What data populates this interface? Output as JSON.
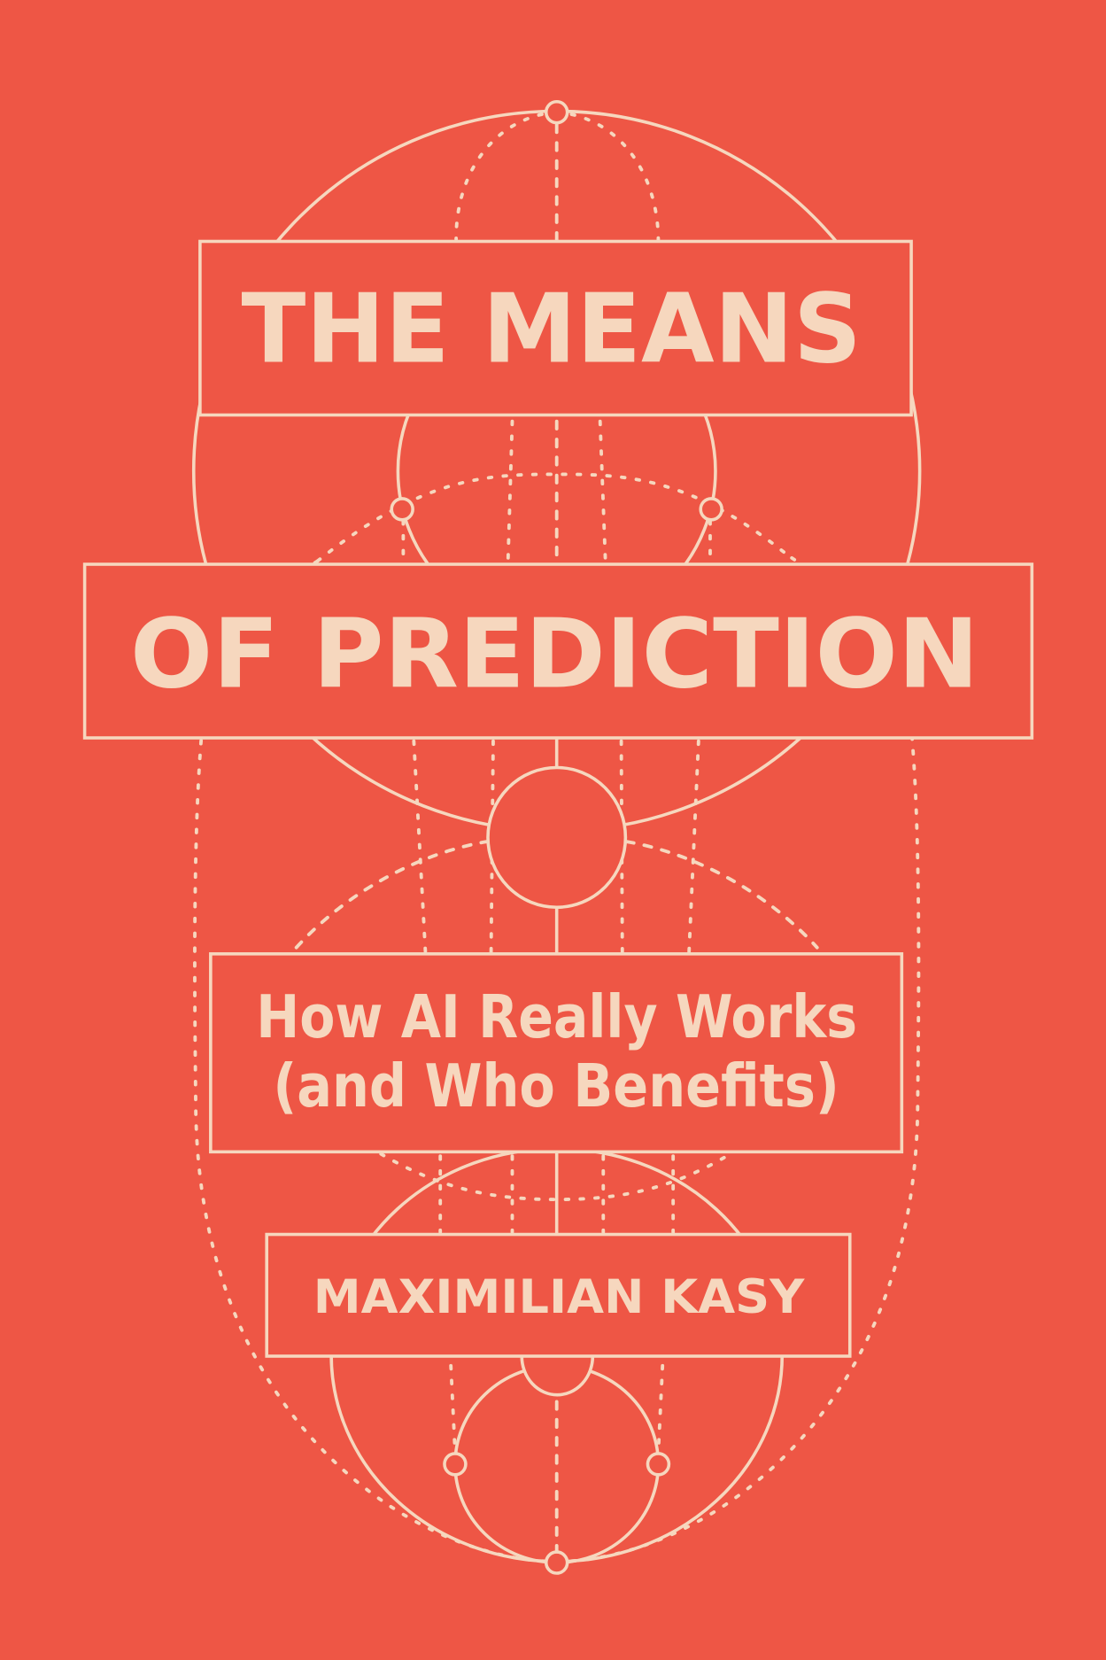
{
  "cover": {
    "title_line1": "THE MEANS",
    "title_line2": "OF PREDICTION",
    "subtitle_line1": "How AI Really Works",
    "subtitle_line2": "(and Who Benefits)",
    "author": "MAXIMILIAN KASY"
  },
  "colors": {
    "background": "#EE5645",
    "ink": "#F6D7BE"
  }
}
